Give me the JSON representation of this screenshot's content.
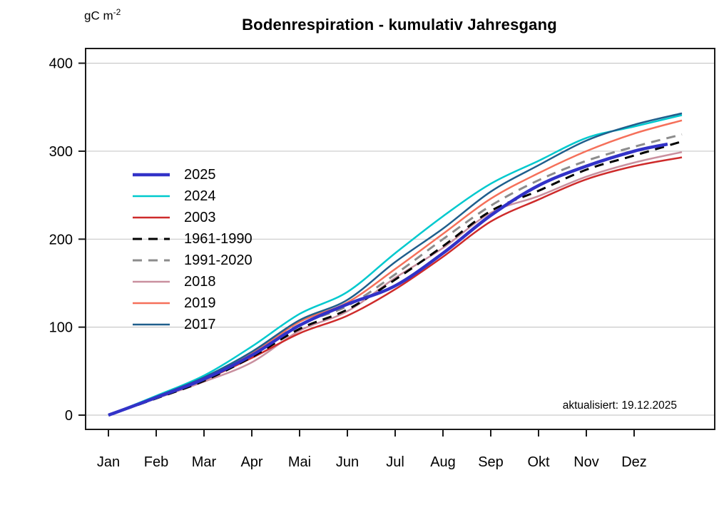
{
  "title": "Bodenrespiration - kumulativ Jahresgang",
  "unit": {
    "prefix": "gC m",
    "exponent": "-2"
  },
  "annotation": "aktualisiert: 19.12.2025",
  "chart_data": {
    "type": "line",
    "title": "Bodenrespiration - kumulativ Jahresgang",
    "ylabel": "gC m^-2",
    "xlabel": "",
    "x_tick_labels": [
      "Jan",
      "Feb",
      "Mar",
      "Apr",
      "Mai",
      "Jun",
      "Jul",
      "Aug",
      "Sep",
      "Okt",
      "Nov",
      "Dez"
    ],
    "y_ticks": [
      0,
      100,
      200,
      300,
      400
    ],
    "ylim": [
      0,
      400
    ],
    "grid": "horizontal",
    "legend_position": "upper-left-inside",
    "grid_color": "#c9c9c9",
    "axis_color": "#1a1a1a",
    "series": [
      {
        "name": "2025",
        "color": "#3232c8",
        "width": 4.5,
        "dash": null,
        "x": [
          0,
          1,
          2,
          3,
          4,
          5,
          6,
          7,
          8,
          9,
          10,
          11,
          11.7
        ],
        "values": [
          0,
          20,
          41,
          68,
          102,
          126,
          147,
          184,
          227,
          261,
          283,
          300,
          308
        ]
      },
      {
        "name": "2024",
        "color": "#00c9ce",
        "width": 2.5,
        "dash": null,
        "x": [
          0,
          1,
          2,
          3,
          4,
          5,
          6,
          7,
          8,
          9,
          10,
          11,
          12
        ],
        "values": [
          0,
          22,
          45,
          78,
          115,
          140,
          184,
          226,
          263,
          289,
          315,
          328,
          341
        ]
      },
      {
        "name": "2003",
        "color": "#ce2b2b",
        "width": 2.5,
        "dash": null,
        "x": [
          0,
          1,
          2,
          3,
          4,
          5,
          6,
          7,
          8,
          9,
          10,
          11,
          12
        ],
        "values": [
          0,
          20,
          40,
          65,
          93,
          113,
          143,
          180,
          220,
          245,
          268,
          283,
          293
        ]
      },
      {
        "name": "1961-1990",
        "color": "#000000",
        "width": 3,
        "dash": "13,9",
        "x": [
          0,
          1,
          2,
          3,
          4,
          5,
          6,
          7,
          8,
          9,
          10,
          11,
          12
        ],
        "values": [
          0,
          19,
          39,
          66,
          98,
          120,
          154,
          192,
          232,
          255,
          279,
          295,
          311
        ]
      },
      {
        "name": "1991-2020",
        "color": "#8c8c8c",
        "width": 3,
        "dash": "13,9",
        "x": [
          0,
          1,
          2,
          3,
          4,
          5,
          6,
          7,
          8,
          9,
          10,
          11,
          12
        ],
        "values": [
          0,
          20,
          41,
          69,
          103,
          124,
          160,
          200,
          238,
          267,
          289,
          305,
          319
        ]
      },
      {
        "name": "2018",
        "color": "#c9909f",
        "width": 2.5,
        "dash": null,
        "x": [
          0,
          1,
          2,
          3,
          4,
          5,
          6,
          7,
          8,
          9,
          10,
          11,
          12
        ],
        "values": [
          0,
          19,
          38,
          60,
          96,
          118,
          156,
          190,
          230,
          249,
          271,
          287,
          299
        ]
      },
      {
        "name": "2019",
        "color": "#f5705a",
        "width": 2.5,
        "dash": null,
        "x": [
          0,
          1,
          2,
          3,
          4,
          5,
          6,
          7,
          8,
          9,
          10,
          11,
          12
        ],
        "values": [
          0,
          20,
          41,
          70,
          106,
          128,
          166,
          206,
          246,
          275,
          300,
          320,
          335
        ]
      },
      {
        "name": "2017",
        "color": "#1f5e8c",
        "width": 2.5,
        "dash": null,
        "x": [
          0,
          1,
          2,
          3,
          4,
          5,
          6,
          7,
          8,
          9,
          10,
          11,
          12
        ],
        "values": [
          0,
          21,
          43,
          72,
          108,
          131,
          174,
          212,
          254,
          284,
          312,
          330,
          343
        ]
      }
    ],
    "draw_order": [
      "2018",
      "2003",
      "1961-1990",
      "1991-2020",
      "2019",
      "2024",
      "2017",
      "2025"
    ]
  }
}
